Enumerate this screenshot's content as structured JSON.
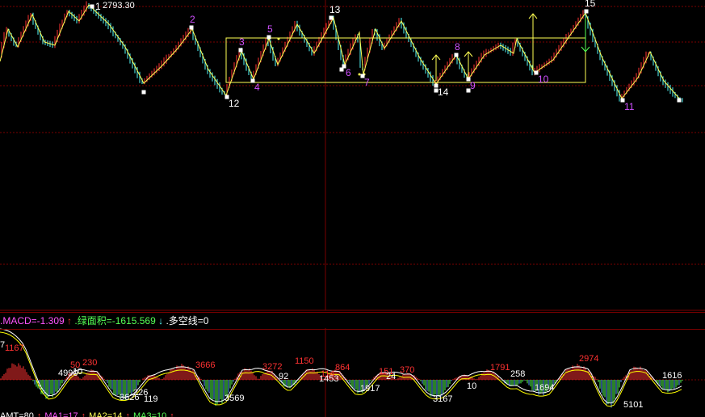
{
  "colors": {
    "background": "#000000",
    "grid": "#7a0000",
    "rise": "#ff3232",
    "fall": "#54fcfc",
    "zigzag": "#ffff54",
    "point_label_purple": "#d050ff",
    "point_label_white": "#ffffff",
    "macd_value": "#ff55ff",
    "green_area": "#55ff55",
    "dea_line": "#ffff00",
    "dif_line": "#ffffff"
  },
  "price_panel": {
    "high_marker": "2793.30",
    "zigzag_points": [
      {
        "label": "1",
        "color": "white",
        "label_pos": "right"
      },
      {
        "label": "2",
        "color": "purple",
        "label_pos": "above"
      },
      {
        "label": "3",
        "color": "purple",
        "label_pos": "above"
      },
      {
        "label": "4",
        "color": "purple",
        "label_pos": "below"
      },
      {
        "label": "5",
        "color": "purple",
        "label_pos": "above"
      },
      {
        "label": "6",
        "color": "purple",
        "label_pos": "below"
      },
      {
        "label": "7",
        "color": "purple",
        "label_pos": "below"
      },
      {
        "label": "8",
        "color": "purple",
        "label_pos": "above"
      },
      {
        "label": "9",
        "color": "purple",
        "label_pos": "below"
      },
      {
        "label": "10",
        "color": "purple",
        "label_pos": "below"
      },
      {
        "label": "11",
        "color": "purple",
        "label_pos": "below"
      },
      {
        "label": "12",
        "color": "white",
        "label_pos": "below"
      },
      {
        "label": "13",
        "color": "white",
        "label_pos": "above"
      },
      {
        "label": "14",
        "color": "white",
        "label_pos": "below"
      },
      {
        "label": "15",
        "color": "white",
        "label_pos": "above"
      }
    ],
    "signal_arrows": [
      "up",
      "up",
      "up",
      "down"
    ]
  },
  "macd_header": {
    "macd_text": ".MACD=-1.309",
    "up_arrow": "↑",
    "green_area_text": ".绿面积=-1615.569",
    "down_arrow": "↓",
    "bull_bear_text": ".多空线=0"
  },
  "macd_panel": {
    "area_labels_red": [
      "1167",
      "50",
      "230",
      "3666",
      "3272",
      "1150",
      "114",
      "864",
      "151",
      "370",
      "1791",
      "2974"
    ],
    "area_labels_white": [
      "7",
      "4990",
      "10",
      "3626",
      "226",
      "119",
      "3569",
      "92",
      "1453",
      "1917",
      "24",
      "3167",
      "10",
      "258",
      "1694",
      "5101",
      "1616"
    ]
  },
  "bottom_bar": {
    "items": [
      {
        "text": "AMT=80",
        "color": "#ffffff"
      },
      {
        "text": "↑",
        "color": "#ff3232"
      },
      {
        "text": "MA1=17",
        "color": "#ff55ff"
      },
      {
        "text": "↑",
        "color": "#ff3232"
      },
      {
        "text": "MA2=14",
        "color": "#ffff54"
      },
      {
        "text": "↑",
        "color": "#ff3232"
      },
      {
        "text": "MA3=10",
        "color": "#55ff55"
      },
      {
        "text": "↑",
        "color": "#ff3232"
      }
    ]
  }
}
